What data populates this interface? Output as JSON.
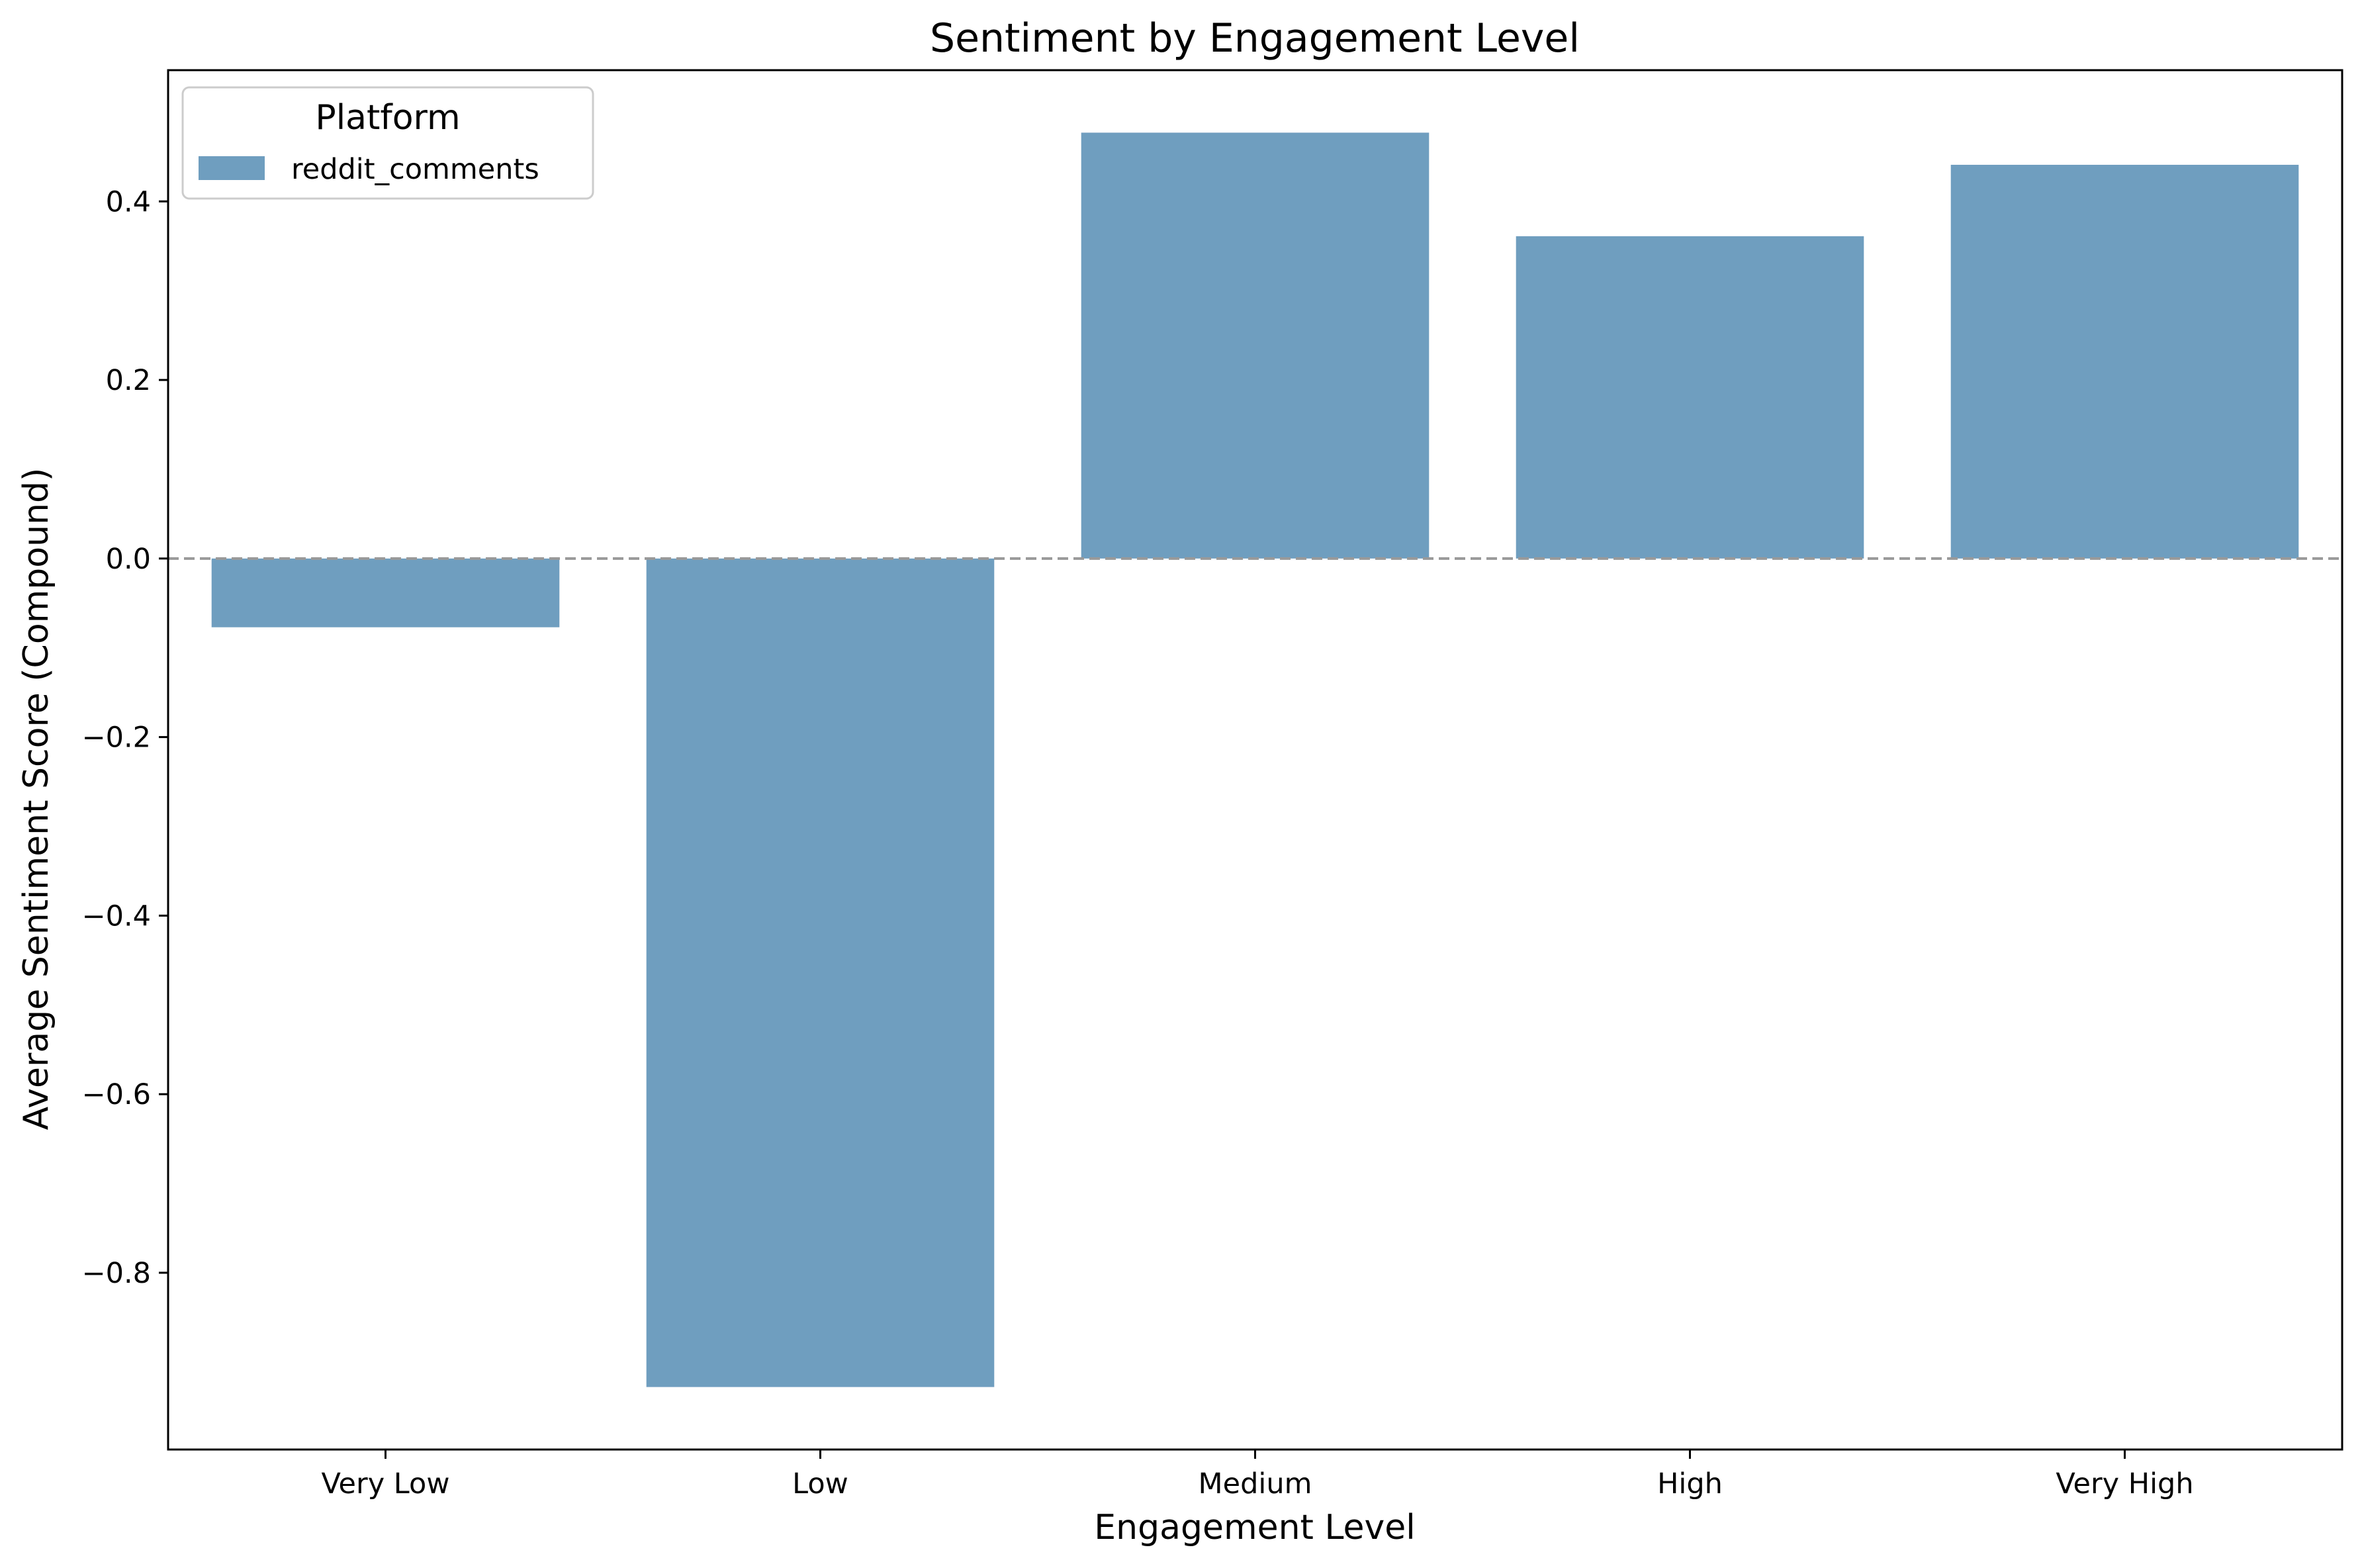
{
  "chart_data": {
    "type": "bar",
    "title": "Sentiment by Engagement Level",
    "xlabel": "Engagement Level",
    "ylabel": "Average Sentiment Score (Compound)",
    "categories": [
      "Very Low",
      "Low",
      "Medium",
      "High",
      "Very High"
    ],
    "series": [
      {
        "name": "reddit_comments",
        "values": [
          -0.077,
          -0.928,
          0.477,
          0.361,
          0.441
        ],
        "color": "#6f9ebf"
      }
    ],
    "ylim": [
      -0.998,
      0.547
    ],
    "yticks": [
      -0.8,
      -0.6,
      -0.4,
      -0.2,
      0.0,
      0.2,
      0.4
    ],
    "ytick_labels": [
      "−0.8",
      "−0.6",
      "−0.4",
      "−0.2",
      "0.0",
      "0.2",
      "0.4"
    ],
    "reference_line": {
      "y": 0,
      "style": "dashed",
      "color": "#999999"
    },
    "legend": {
      "title": "Platform",
      "position": "top-left"
    },
    "grid": false
  }
}
